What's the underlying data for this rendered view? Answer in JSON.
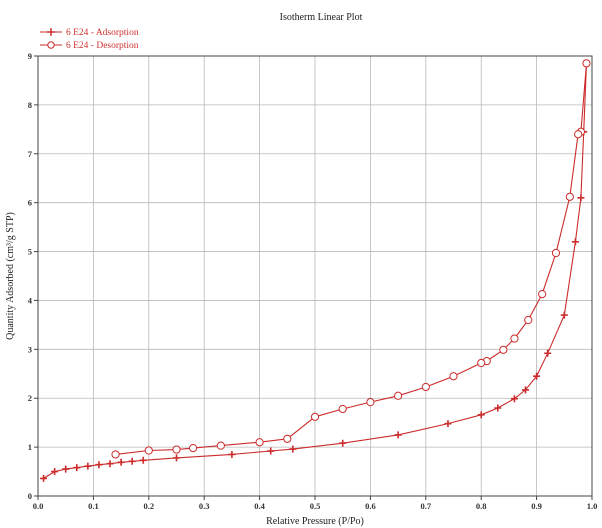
{
  "chart_data": {
    "type": "line",
    "title": "Isotherm Linear Plot",
    "xlabel": "Relative Pressure (P/Po)",
    "ylabel": "Quantity Adsorbed (cm³/g STP)",
    "xlim": [
      0,
      1.0
    ],
    "ylim": [
      0,
      9
    ],
    "xticks": [
      0.0,
      0.1,
      0.2,
      0.3,
      0.4,
      0.5,
      0.6,
      0.7,
      0.8,
      0.9,
      1.0
    ],
    "xtick_labels": [
      "0.0",
      "0.1",
      "0.2",
      "0.3",
      "0.4",
      "0.5",
      "0.6",
      "0.7",
      "0.8",
      "0.9",
      "1.0"
    ],
    "yticks": [
      0,
      1,
      2,
      3,
      4,
      5,
      6,
      7,
      8,
      9
    ],
    "ytick_labels": [
      "0",
      "1",
      "2",
      "3",
      "4",
      "5",
      "6",
      "7",
      "8",
      "9"
    ],
    "grid": true,
    "legend_position": "top-left",
    "colors": {
      "line": "#cc2b2b",
      "grid": "#b9b9b9",
      "axis": "#444444"
    },
    "series": [
      {
        "name": "6 E24 - Adsorption",
        "marker": "plus",
        "x": [
          0.01,
          0.03,
          0.05,
          0.07,
          0.09,
          0.11,
          0.13,
          0.15,
          0.17,
          0.19,
          0.25,
          0.35,
          0.42,
          0.46,
          0.55,
          0.65,
          0.74,
          0.8,
          0.83,
          0.86,
          0.88,
          0.9,
          0.92,
          0.95,
          0.97,
          0.98,
          0.985,
          0.99
        ],
        "y": [
          0.36,
          0.5,
          0.55,
          0.58,
          0.61,
          0.64,
          0.66,
          0.69,
          0.71,
          0.73,
          0.78,
          0.85,
          0.92,
          0.96,
          1.08,
          1.25,
          1.48,
          1.66,
          1.8,
          1.99,
          2.17,
          2.45,
          2.92,
          3.7,
          5.2,
          6.1,
          7.45,
          8.85
        ]
      },
      {
        "name": "6 E24 - Desorption",
        "marker": "circle",
        "x": [
          0.99,
          0.98,
          0.975,
          0.96,
          0.935,
          0.91,
          0.885,
          0.86,
          0.84,
          0.81,
          0.8,
          0.75,
          0.7,
          0.65,
          0.6,
          0.55,
          0.5,
          0.45,
          0.4,
          0.33,
          0.28,
          0.25,
          0.2,
          0.14
        ],
        "y": [
          8.85,
          7.45,
          7.4,
          6.12,
          4.97,
          4.13,
          3.6,
          3.22,
          2.99,
          2.76,
          2.72,
          2.45,
          2.23,
          2.05,
          1.92,
          1.78,
          1.62,
          1.17,
          1.1,
          1.03,
          0.98,
          0.95,
          0.93,
          0.85
        ]
      }
    ]
  }
}
